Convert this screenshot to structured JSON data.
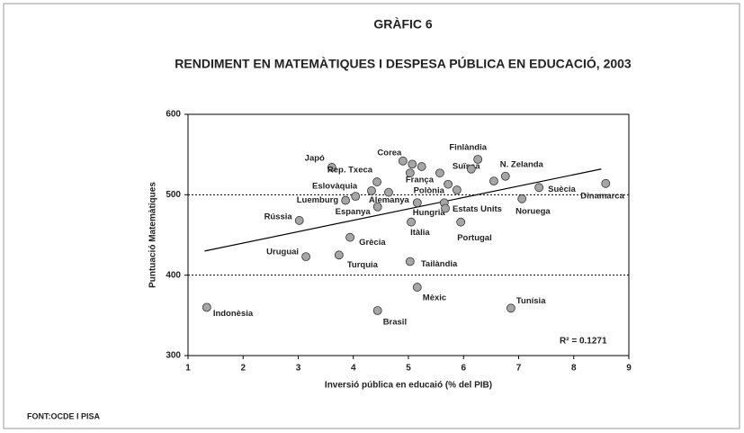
{
  "chart_data": {
    "type": "scatter",
    "title": "GRÀFIC 6",
    "subtitle": "RENDIMENT EN MATEMÀTIQUES I DESPESA PÚBLICA EN EDUCACIÓ, 2003",
    "xlabel": "Inversió pública en educaió (% del PIB)",
    "ylabel": "Puntuació Matemàtiques",
    "source": "FONT:OCDE I PISA",
    "r2_label": "R² = 0.1271",
    "color": "#a6a6a6",
    "xlim": [
      1,
      9
    ],
    "xticks": [
      1,
      2,
      3,
      4,
      5,
      6,
      7,
      8,
      9
    ],
    "ylim": [
      300,
      600
    ],
    "yticks": [
      300,
      400,
      500,
      600
    ],
    "reference_lines": [
      400,
      500
    ],
    "trendline": {
      "x": [
        1.3,
        8.5
      ],
      "y": [
        430,
        532
      ]
    },
    "labels": [
      "Indonèsia",
      "Japó",
      "Rússia",
      "Uruguai",
      "Turquia",
      "Grècia",
      "Luemburg",
      "Eslovàquia",
      null,
      "Rep. Txeca",
      "Espanya",
      "Alemanya",
      "Corea",
      null,
      null,
      "França",
      "Hungria",
      "Itàlia",
      "Tailàndia",
      "Mèxic",
      "Brasil",
      "Suïssa",
      null,
      "Polònia",
      null,
      "Estats Units",
      "Portugal",
      null,
      "Finlàndia",
      null,
      "N. Zelanda",
      "Noruega",
      "Suècia",
      "Dinamarca",
      "Tunísia"
    ],
    "x": [
      1.34,
      3.61,
      3.02,
      3.14,
      3.74,
      3.94,
      3.86,
      4.04,
      4.33,
      4.43,
      4.44,
      4.64,
      4.9,
      5.07,
      5.24,
      5.03,
      5.16,
      5.05,
      5.03,
      5.16,
      4.44,
      5.57,
      5.72,
      5.88,
      5.65,
      5.67,
      5.95,
      6.14,
      6.26,
      6.55,
      6.76,
      7.06,
      7.37,
      8.58,
      6.86
    ],
    "values": [
      360,
      534,
      468,
      423,
      425,
      447,
      493,
      498,
      505,
      516,
      485,
      503,
      542,
      538,
      535,
      527,
      490,
      466,
      417,
      385,
      356,
      527,
      513,
      506,
      490,
      483,
      466,
      532,
      544,
      517,
      523,
      495,
      509,
      514,
      359
    ]
  }
}
